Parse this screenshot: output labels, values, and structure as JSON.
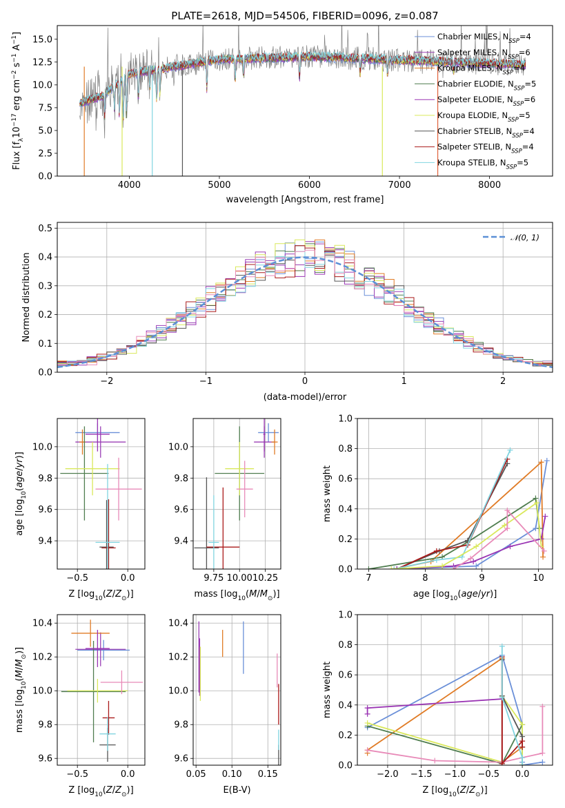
{
  "figure": {
    "title": "PLATE=2618, MJD=54506, FIBERID=0096, z=0.087"
  },
  "colors": {
    "Chabrier MILES": "#6a8fd8",
    "Salpeter MILES": "#9a3fb5",
    "Kroupa MILES": "#e07b25",
    "Chabrier ELODIE": "#4f7d4f",
    "Salpeter ELODIE": "#9933b3",
    "Kroupa ELODIE": "#d9e85a",
    "Chabrier STELIB": "#555555",
    "Salpeter STELIB": "#aa1a1a",
    "Kroupa STELIB": "#80d4e0",
    "pink": "#e88ab8",
    "data": "#808080"
  },
  "chart_data": [
    {
      "id": "spectrum",
      "type": "line",
      "title": "PLATE=2618, MJD=54506, FIBERID=0096, z=0.087",
      "xlabel": "wavelength [Angstrom, rest frame]",
      "ylabel": "Flux [f_λ 10^-17 erg cm^-2 s^-1 A^-1]",
      "xlim": [
        3200,
        8700
      ],
      "ylim": [
        0,
        16.5
      ],
      "xticks": [
        4000,
        5000,
        6000,
        7000,
        8000
      ],
      "yticks": [
        0.0,
        2.5,
        5.0,
        7.5,
        10.0,
        12.5,
        15.0
      ],
      "legend": "right",
      "series": [
        {
          "name": "Chabrier MILES, N_SSP=4",
          "label_main": "Chabrier MILES, N",
          "label_sub": "SSP",
          "label_tail": "=4",
          "color": "#6a8fd8"
        },
        {
          "name": "Salpeter MILES, N_SSP=6",
          "label_main": "Salpeter MILES, N",
          "label_sub": "SSP",
          "label_tail": "=6",
          "color": "#9a3fb5"
        },
        {
          "name": "Kroupa MILES, N_SSP=4",
          "label_main": "Kroupa MILES, N",
          "label_sub": "SSP",
          "label_tail": "=4",
          "color": "#e07b25"
        },
        {
          "name": "Chabrier ELODIE, N_SSP=5",
          "label_main": "Chabrier ELODIE, N",
          "label_sub": "SSP",
          "label_tail": "=5",
          "color": "#4f7d4f"
        },
        {
          "name": "Salpeter ELODIE, N_SSP=6",
          "label_main": "Salpeter ELODIE, N",
          "label_sub": "SSP",
          "label_tail": "=6",
          "color": "#9933b3"
        },
        {
          "name": "Kroupa ELODIE, N_SSP=5",
          "label_main": "Kroupa ELODIE, N",
          "label_sub": "SSP",
          "label_tail": "=5",
          "color": "#d9e85a"
        },
        {
          "name": "Chabrier STELIB, N_SSP=4",
          "label_main": "Chabrier STELIB, N",
          "label_sub": "SSP",
          "label_tail": "=4",
          "color": "#555555"
        },
        {
          "name": "Salpeter STELIB, N_SSP=4",
          "label_main": "Salpeter STELIB, N",
          "label_sub": "SSP",
          "label_tail": "=4",
          "color": "#aa1a1a"
        },
        {
          "name": "Kroupa STELIB, N_SSP=5",
          "label_main": "Kroupa STELIB, N",
          "label_sub": "SSP",
          "label_tail": "=5",
          "color": "#80d4e0"
        }
      ]
    },
    {
      "id": "residuals",
      "type": "line",
      "xlabel": "(data-model)/error",
      "ylabel": "Normed distribution",
      "xlim": [
        -2.5,
        2.5
      ],
      "ylim": [
        0,
        0.52
      ],
      "xticks": [
        -2,
        -1,
        0,
        1,
        2
      ],
      "yticks": [
        0.0,
        0.1,
        0.2,
        0.3,
        0.4,
        0.5
      ],
      "grid": true,
      "legend": "top-right",
      "legend_label": "N(0,1)",
      "gaussian_color": "#5b8fd6",
      "bin_width": 0.1
    },
    {
      "id": "age_vs_Z",
      "type": "scatter",
      "xlabel": "Z [log10(Z/Z⊙)]",
      "ylabel": "age [log10(age/yr)]",
      "xlim": [
        -0.7,
        0.17
      ],
      "ylim": [
        9.22,
        10.18
      ],
      "xticks": [
        -0.5,
        0.0
      ],
      "yticks": [
        9.4,
        9.6,
        9.8,
        10.0
      ],
      "grid": true,
      "points": [
        {
          "x": -0.3,
          "y": 10.09,
          "xerr": 0.22,
          "yerr": 0.06,
          "color": "#6a8fd8"
        },
        {
          "x": -0.27,
          "y": 10.03,
          "xerr": 0.25,
          "yerr": 0.1,
          "color": "#9a3fb5"
        },
        {
          "x": -0.45,
          "y": 10.03,
          "xerr": 0.03,
          "yerr": 0.08,
          "color": "#e07b25"
        },
        {
          "x": -0.43,
          "y": 9.83,
          "xerr": 0.24,
          "yerr": 0.3,
          "color": "#4f7d4f"
        },
        {
          "x": -0.35,
          "y": 9.86,
          "xerr": 0.27,
          "yerr": 0.17,
          "color": "#d9e85a"
        },
        {
          "x": -0.3,
          "y": 10.08,
          "xerr": 0.12,
          "yerr": 0.11,
          "color": "#9933b3"
        },
        {
          "x": -0.21,
          "y": 9.36,
          "xerr": 0.07,
          "yerr": 0.3,
          "color": "#555555"
        },
        {
          "x": -0.19,
          "y": 9.355,
          "xerr": 0.07,
          "yerr": 0.31,
          "color": "#aa1a1a"
        },
        {
          "x": -0.2,
          "y": 9.39,
          "xerr": 0.12,
          "yerr": 0.5,
          "color": "#80d4e0"
        },
        {
          "x": -0.09,
          "y": 9.73,
          "xerr": 0.23,
          "yerr": 0.2,
          "color": "#e88ab8"
        }
      ]
    },
    {
      "id": "age_vs_mass",
      "type": "scatter",
      "xlabel": "mass [log10(M/M⊙)]",
      "ylabel": "",
      "xlim": [
        9.55,
        10.4
      ],
      "ylim": [
        9.22,
        10.18
      ],
      "xticks": [
        9.75,
        10.0,
        10.25
      ],
      "xticklabels": [
        "9.75",
        "10.00",
        "10.25"
      ],
      "yticks": [
        9.4,
        9.6,
        9.8,
        10.0
      ],
      "grid": true,
      "points": [
        {
          "x": 10.28,
          "y": 10.09,
          "xerr": 0.1,
          "yerr": 0.06,
          "color": "#6a8fd8"
        },
        {
          "x": 10.24,
          "y": 10.03,
          "xerr": 0.1,
          "yerr": 0.1,
          "color": "#9a3fb5"
        },
        {
          "x": 10.34,
          "y": 10.03,
          "xerr": 0.03,
          "yerr": 0.08,
          "color": "#e07b25"
        },
        {
          "x": 10.0,
          "y": 9.83,
          "xerr": 0.24,
          "yerr": 0.3,
          "color": "#4f7d4f"
        },
        {
          "x": 10.0,
          "y": 9.86,
          "xerr": 0.14,
          "yerr": 0.17,
          "color": "#d9e85a"
        },
        {
          "x": 10.24,
          "y": 10.08,
          "xerr": 0.01,
          "yerr": 0.11,
          "color": "#9933b3"
        },
        {
          "x": 9.68,
          "y": 9.355,
          "xerr": 0.12,
          "yerr": 0.45,
          "color": "#555555"
        },
        {
          "x": 9.84,
          "y": 9.36,
          "xerr": 0.16,
          "yerr": 0.38,
          "color": "#aa1a1a"
        },
        {
          "x": 9.75,
          "y": 9.39,
          "xerr": 0.05,
          "yerr": 0.3,
          "color": "#80d4e0"
        },
        {
          "x": 10.05,
          "y": 9.73,
          "xerr": 0.08,
          "yerr": 0.18,
          "color": "#e88ab8"
        }
      ]
    },
    {
      "id": "weight_vs_age",
      "type": "line",
      "xlabel": "age [log10(age/yr)]",
      "ylabel": "mass weight",
      "xlim": [
        6.8,
        10.25
      ],
      "ylim": [
        0.0,
        1.0
      ],
      "xticks": [
        7,
        8,
        9,
        10
      ],
      "yticks": [
        0.0,
        0.2,
        0.4,
        0.6,
        0.8,
        1.0
      ],
      "grid": true,
      "series": [
        {
          "color": "#6a8fd8",
          "x": [
            7.5,
            8.9,
            9.95,
            10.15
          ],
          "y": [
            0.0,
            0.02,
            0.27,
            0.72
          ]
        },
        {
          "color": "#e07b25",
          "x": [
            7.45,
            8.1,
            10.05,
            10.08
          ],
          "y": [
            0.0,
            0.05,
            0.71,
            0.08
          ]
        },
        {
          "color": "#4f7d4f",
          "x": [
            7.0,
            8.3,
            8.75,
            9.95,
            10.02
          ],
          "y": [
            0.0,
            0.08,
            0.18,
            0.47,
            0.27
          ]
        },
        {
          "color": "#555555",
          "x": [
            7.5,
            8.25,
            8.75,
            9.45
          ],
          "y": [
            0.0,
            0.12,
            0.19,
            0.7
          ]
        },
        {
          "color": "#aa1a1a",
          "x": [
            7.5,
            8.2,
            8.75,
            9.45
          ],
          "y": [
            0.0,
            0.12,
            0.16,
            0.73
          ]
        },
        {
          "color": "#80d4e0",
          "x": [
            7.45,
            8.2,
            8.65,
            9.5
          ],
          "y": [
            0.0,
            0.06,
            0.08,
            0.79
          ]
        },
        {
          "color": "#9933b3",
          "x": [
            7.5,
            8.5,
            8.85,
            9.5,
            10.05,
            10.12
          ],
          "y": [
            0.0,
            0.02,
            0.05,
            0.15,
            0.2,
            0.35
          ]
        },
        {
          "color": "#d9e85a",
          "x": [
            7.4,
            8.3,
            8.9,
            9.4,
            9.97,
            10.05
          ],
          "y": [
            0.0,
            0.02,
            0.15,
            0.29,
            0.44,
            0.15
          ]
        },
        {
          "color": "#e88ab8",
          "x": [
            8.5,
            8.8,
            9.45,
            9.45,
            10.1
          ],
          "y": [
            0.0,
            0.07,
            0.27,
            0.39,
            0.12
          ]
        }
      ]
    },
    {
      "id": "mass_vs_Z",
      "type": "scatter",
      "xlabel": "Z [log10(Z/Z⊙)]",
      "ylabel": "mass [log10(M/M⊙)]",
      "xlim": [
        -0.7,
        0.17
      ],
      "ylim": [
        9.56,
        10.45
      ],
      "xticks": [
        -0.5,
        0.0
      ],
      "yticks": [
        9.6,
        9.8,
        10.0,
        10.2,
        10.4
      ],
      "grid": true,
      "points": [
        {
          "x": -0.24,
          "y": 10.24,
          "xerr": 0.26,
          "yerr": 0.06,
          "color": "#6a8fd8"
        },
        {
          "x": -0.27,
          "y": 10.245,
          "xerr": 0.25,
          "yerr": 0.1,
          "color": "#9a3fb5"
        },
        {
          "x": -0.37,
          "y": 10.34,
          "xerr": 0.19,
          "yerr": 0.08,
          "color": "#e07b25"
        },
        {
          "x": -0.34,
          "y": 9.995,
          "xerr": 0.32,
          "yerr": 0.3,
          "color": "#4f7d4f"
        },
        {
          "x": -0.3,
          "y": 10.0,
          "xerr": 0.3,
          "yerr": 0.07,
          "color": "#d9e85a"
        },
        {
          "x": -0.3,
          "y": 10.25,
          "xerr": 0.12,
          "yerr": 0.11,
          "color": "#9933b3"
        },
        {
          "x": -0.2,
          "y": 9.68,
          "xerr": 0.08,
          "yerr": 0.1,
          "color": "#555555"
        },
        {
          "x": -0.19,
          "y": 9.84,
          "xerr": 0.06,
          "yerr": 0.1,
          "color": "#aa1a1a"
        },
        {
          "x": -0.2,
          "y": 9.745,
          "xerr": 0.08,
          "yerr": 0.1,
          "color": "#80d4e0"
        },
        {
          "x": -0.06,
          "y": 10.05,
          "xerr": 0.21,
          "yerr": 0.07,
          "color": "#e88ab8"
        }
      ]
    },
    {
      "id": "mass_vs_ebv",
      "type": "scatter",
      "xlabel": "E(B-V)",
      "ylabel": "",
      "xlim": [
        0.046,
        0.168
      ],
      "ylim": [
        9.56,
        10.45
      ],
      "xticks": [
        0.05,
        0.1,
        0.15
      ],
      "xticklabels": [
        "0.05",
        "0.10",
        "0.15"
      ],
      "yticks": [
        9.6,
        9.8,
        10.0,
        10.2,
        10.4
      ],
      "grid": true,
      "points": [
        {
          "x": 0.116,
          "y": 10.255,
          "xerr": 0.0,
          "yerr": 0.155,
          "color": "#6a8fd8"
        },
        {
          "x": 0.054,
          "y": 10.2,
          "xerr": 0.0,
          "yerr": 0.21,
          "color": "#9a3fb5"
        },
        {
          "x": 0.087,
          "y": 10.28,
          "xerr": 0.0,
          "yerr": 0.08,
          "color": "#e07b25"
        },
        {
          "x": 0.055,
          "y": 10.14,
          "xerr": 0.0,
          "yerr": 0.17,
          "color": "#9933b3"
        },
        {
          "x": 0.056,
          "y": 10.1,
          "xerr": 0.0,
          "yerr": 0.16,
          "color": "#d9e85a"
        },
        {
          "x": 0.165,
          "y": 9.92,
          "xerr": 0.0,
          "yerr": 0.12,
          "color": "#aa1a1a"
        },
        {
          "x": 0.163,
          "y": 10.12,
          "xerr": 0.0,
          "yerr": 0.1,
          "color": "#e88ab8"
        },
        {
          "x": 0.165,
          "y": 9.62,
          "xerr": 0.0,
          "yerr": 0.06,
          "color": "#555555"
        },
        {
          "x": 0.165,
          "y": 9.71,
          "xerr": 0.0,
          "yerr": 0.06,
          "color": "#80d4e0"
        }
      ]
    },
    {
      "id": "weight_vs_Z",
      "type": "line",
      "xlabel": "Z [log10(Z/Z⊙)]",
      "ylabel": "mass weight",
      "xlim": [
        -2.45,
        0.45
      ],
      "ylim": [
        0.0,
        1.0
      ],
      "xticks": [
        -2.0,
        -1.5,
        -1.0,
        -0.5,
        0.0
      ],
      "yticks": [
        0.0,
        0.2,
        0.4,
        0.6,
        0.8,
        1.0
      ],
      "grid": true,
      "series": [
        {
          "color": "#6a8fd8",
          "x": [
            -2.3,
            -0.3,
            0.0,
            0.0,
            0.0,
            0.3
          ],
          "y": [
            0.25,
            0.73,
            0.27,
            0.02,
            0.0,
            0.02
          ]
        },
        {
          "color": "#e07b25",
          "x": [
            -2.3,
            -2.3,
            -0.3,
            -0.3,
            0.0
          ],
          "y": [
            0.08,
            0.1,
            0.71,
            0.02,
            0.12
          ]
        },
        {
          "color": "#4f7d4f",
          "x": [
            -2.3,
            -0.3,
            0.0,
            0.0
          ],
          "y": [
            0.26,
            0.01,
            0.27,
            0.0
          ]
        },
        {
          "color": "#d9e85a",
          "x": [
            -2.3,
            -0.3,
            -0.3,
            0.0,
            0.0
          ],
          "y": [
            0.28,
            0.02,
            0.46,
            0.27,
            0.0
          ]
        },
        {
          "color": "#9933b3",
          "x": [
            -2.3,
            -2.3,
            -0.3,
            -0.3
          ],
          "y": [
            0.34,
            0.38,
            0.44,
            0.02
          ]
        },
        {
          "color": "#e88ab8",
          "x": [
            -2.3,
            -1.3,
            -0.3,
            0.3,
            0.3
          ],
          "y": [
            0.1,
            0.03,
            0.02,
            0.08,
            0.39
          ]
        },
        {
          "color": "#555555",
          "x": [
            -0.3,
            -0.3,
            0.0,
            0.0
          ],
          "y": [
            0.7,
            0.46,
            0.19,
            0.12
          ]
        },
        {
          "color": "#aa1a1a",
          "x": [
            -0.3,
            -0.3,
            0.0,
            0.0
          ],
          "y": [
            0.72,
            0.01,
            0.16,
            0.12
          ]
        },
        {
          "color": "#80d4e0",
          "x": [
            -0.3,
            -0.3,
            0.0,
            0.0
          ],
          "y": [
            0.79,
            0.45,
            0.05,
            0.0
          ]
        }
      ]
    }
  ]
}
